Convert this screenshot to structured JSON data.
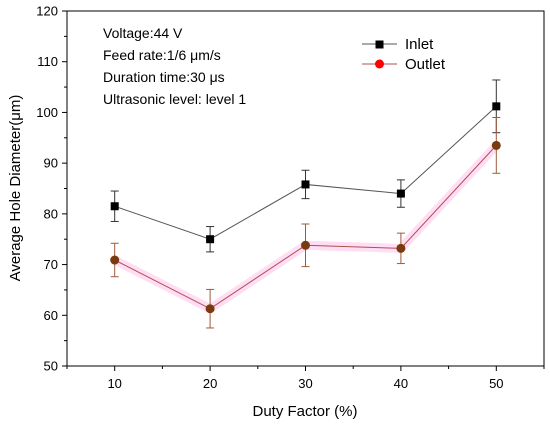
{
  "chart_data": {
    "type": "line",
    "xlabel": "Duty Factor (%)",
    "ylabel": "Average Hole Diameter(μm)",
    "xlim": [
      5,
      55
    ],
    "ylim": [
      50,
      120
    ],
    "x_ticks": [
      10,
      20,
      30,
      40,
      50
    ],
    "y_ticks": [
      50,
      60,
      70,
      80,
      90,
      100,
      110,
      120
    ],
    "grid": false,
    "legend_position": "top-right",
    "annotations": [
      "Voltage:44 V",
      "Feed rate:1/6 μm/s",
      "Duration time:30 μs",
      "Ultrasonic level: level 1"
    ],
    "x": [
      10,
      20,
      30,
      40,
      50
    ],
    "series": [
      {
        "name": "Inlet",
        "marker": "square",
        "color": "#000000",
        "line_color": "#555555",
        "values": [
          81.5,
          75.0,
          85.8,
          84.0,
          101.2
        ],
        "error": [
          3.0,
          2.5,
          2.8,
          2.7,
          5.2
        ]
      },
      {
        "name": "Outlet",
        "marker": "circle",
        "color": "#ff0000",
        "point_color": "#7a3a10",
        "line_color": "#b05050",
        "values": [
          70.9,
          61.3,
          73.8,
          73.2,
          93.5
        ],
        "error": [
          3.3,
          3.8,
          4.2,
          3.0,
          5.5
        ]
      }
    ]
  }
}
